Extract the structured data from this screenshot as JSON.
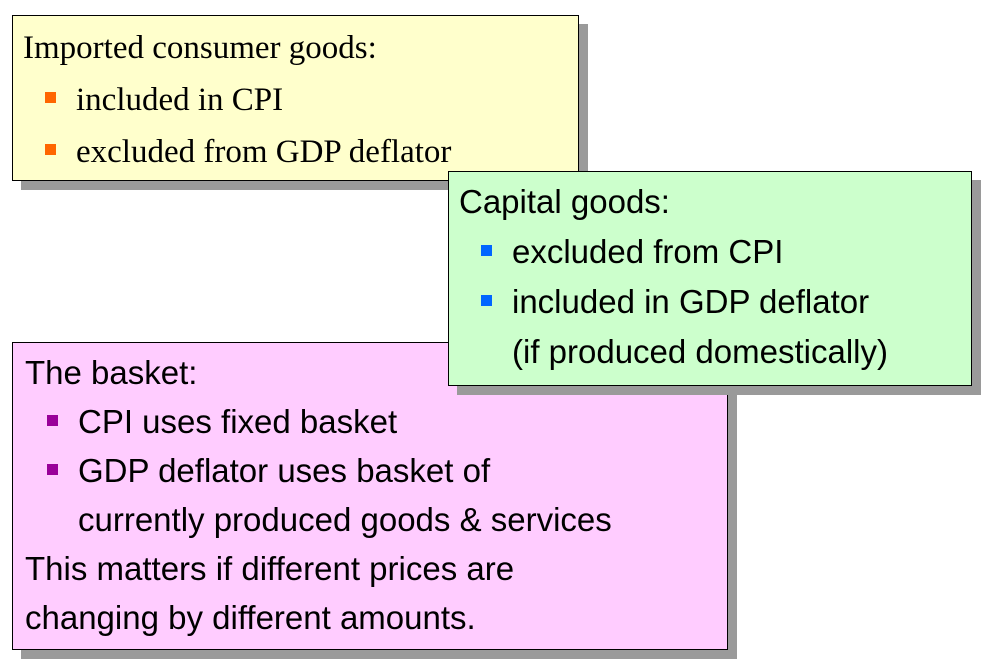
{
  "imported_box": {
    "heading": "Imported consumer goods:",
    "bullets": [
      "included in CPI",
      "excluded from GDP deflator"
    ],
    "marker_color": "#ff6600",
    "background": "#ffffcc"
  },
  "capital_box": {
    "heading": "Capital goods:",
    "bullets": [
      {
        "lines": [
          "excluded from CPI"
        ]
      },
      {
        "lines": [
          "included in GDP deflator",
          "(if produced domestically)"
        ]
      }
    ],
    "marker_color": "#0066ff",
    "background": "#ccffcc"
  },
  "basket_box": {
    "heading": "The basket:",
    "bullets": [
      {
        "lines": [
          "CPI uses fixed basket"
        ]
      },
      {
        "lines": [
          "GDP deflator uses basket of",
          "currently produced goods & services"
        ]
      }
    ],
    "footer_lines": [
      "This matters if different prices are",
      "changing by different amounts."
    ],
    "marker_color": "#990099",
    "background": "#ffccff"
  }
}
